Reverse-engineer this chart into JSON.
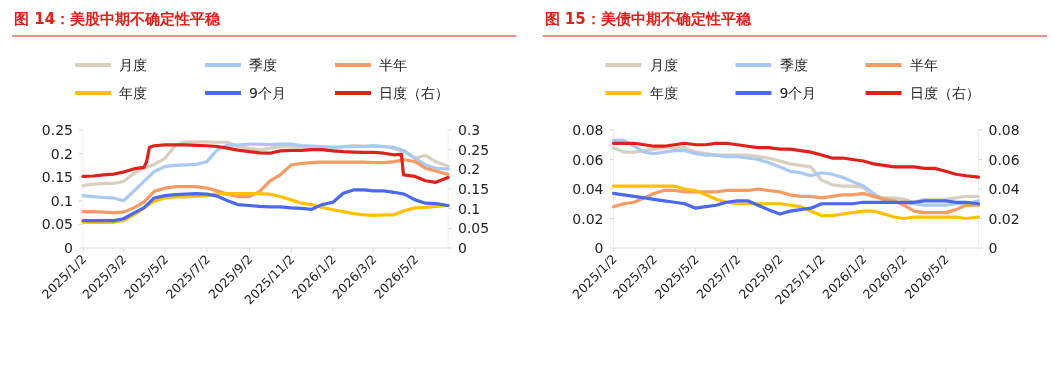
{
  "chart_data": [
    {
      "type": "line",
      "title": "图 14：美股中期不确定性平稳",
      "legend": "top",
      "x": [
        "2025-01-02",
        "2025-01-17",
        "2025-02-01",
        "2025-02-16",
        "2025-03-02",
        "2025-03-17",
        "2025-04-01",
        "2025-04-16",
        "2025-05-02",
        "2025-05-17",
        "2025-06-01",
        "2025-06-16",
        "2025-07-02",
        "2025-07-17",
        "2025-08-01",
        "2025-08-16",
        "2025-09-02",
        "2025-09-17",
        "2025-10-02",
        "2025-10-17",
        "2025-11-02",
        "2025-11-17",
        "2025-12-02",
        "2025-12-17",
        "2026-01-02",
        "2026-01-17",
        "2026-02-01",
        "2026-02-16",
        "2026-03-02",
        "2026-03-17",
        "2026-04-01",
        "2026-04-16",
        "2026-05-02",
        "2026-05-17",
        "2026-06-01",
        "2026-06-19"
      ],
      "xlim": [
        "2025-01-02",
        "2026-06-19"
      ],
      "xticks": [
        {
          "value": "2025-01-02",
          "label": "2025/1/2"
        },
        {
          "value": "2025-03-02",
          "label": "2025/3/2"
        },
        {
          "value": "2025-05-02",
          "label": "2025/5/2"
        },
        {
          "value": "2025-07-02",
          "label": "2025/7/2"
        },
        {
          "value": "2025-09-02",
          "label": "2025/9/2"
        },
        {
          "value": "2025-11-02",
          "label": "2025/11/2"
        },
        {
          "value": "2026-01-02",
          "label": "2026/1/2"
        },
        {
          "value": "2026-03-02",
          "label": "2026/3/2"
        },
        {
          "value": "2026-05-02",
          "label": "2026/5/2"
        }
      ],
      "ylim": [
        0,
        0.25
      ],
      "yticks": [
        0,
        0.05,
        0.1,
        0.15,
        0.2,
        0.25
      ],
      "y2lim": [
        0,
        0.3
      ],
      "y2ticks": [
        0,
        0.05,
        0.1,
        0.15,
        0.2,
        0.25,
        0.3
      ],
      "series": [
        {
          "name": "月度",
          "color": "#d9cfbe",
          "values": [
            0.132,
            0.135,
            0.137,
            0.137,
            0.141,
            0.158,
            0.169,
            0.177,
            0.19,
            0.218,
            0.225,
            0.225,
            0.225,
            0.224,
            0.224,
            0.215,
            0.211,
            0.208,
            0.211,
            0.215,
            0.215,
            0.215,
            0.213,
            0.211,
            0.211,
            0.215,
            0.217,
            0.216,
            0.215,
            0.215,
            0.211,
            0.204,
            0.19,
            0.196,
            0.183,
            0.173
          ]
        },
        {
          "name": "季度",
          "color": "#a9c9f3",
          "values": [
            0.111,
            0.109,
            0.107,
            0.106,
            0.1,
            0.12,
            0.141,
            0.162,
            0.173,
            0.175,
            0.176,
            0.177,
            0.183,
            0.208,
            0.218,
            0.218,
            0.22,
            0.22,
            0.219,
            0.22,
            0.22,
            0.217,
            0.216,
            0.215,
            0.214,
            0.214,
            0.215,
            0.215,
            0.217,
            0.215,
            0.213,
            0.206,
            0.19,
            0.176,
            0.169,
            0.167
          ]
        },
        {
          "name": "半年",
          "color": "#f89b63",
          "values": [
            0.077,
            0.077,
            0.076,
            0.075,
            0.076,
            0.085,
            0.097,
            0.12,
            0.127,
            0.13,
            0.13,
            0.13,
            0.127,
            0.121,
            0.114,
            0.109,
            0.109,
            0.12,
            0.142,
            0.155,
            0.176,
            0.179,
            0.181,
            0.182,
            0.182,
            0.182,
            0.182,
            0.182,
            0.181,
            0.181,
            0.183,
            0.187,
            0.183,
            0.169,
            0.163,
            0.156
          ]
        },
        {
          "name": "年度",
          "color": "#ffc000",
          "values": [
            0.055,
            0.054,
            0.054,
            0.055,
            0.058,
            0.07,
            0.085,
            0.099,
            0.106,
            0.108,
            0.108,
            0.11,
            0.111,
            0.115,
            0.115,
            0.115,
            0.115,
            0.115,
            0.114,
            0.109,
            0.102,
            0.095,
            0.092,
            0.086,
            0.081,
            0.077,
            0.073,
            0.07,
            0.069,
            0.07,
            0.07,
            0.079,
            0.085,
            0.086,
            0.088,
            0.09
          ]
        },
        {
          "name": "9个月",
          "color": "#4a68f0",
          "values": [
            0.058,
            0.058,
            0.058,
            0.058,
            0.062,
            0.074,
            0.085,
            0.106,
            0.111,
            0.113,
            0.114,
            0.115,
            0.114,
            0.11,
            0.1,
            0.092,
            0.09,
            0.088,
            0.087,
            0.087,
            0.085,
            0.084,
            0.082,
            0.092,
            0.097,
            0.116,
            0.123,
            0.123,
            0.121,
            0.121,
            0.118,
            0.114,
            0.102,
            0.095,
            0.094,
            0.09
          ]
        },
        {
          "name": "日度（右）",
          "color": "#e0201b",
          "axis": "y2",
          "x": [
            "2025-01-02",
            "2025-01-17",
            "2025-02-01",
            "2025-02-16",
            "2025-03-02",
            "2025-03-17",
            "2025-04-01",
            "2025-04-05",
            "2025-04-09",
            "2025-04-16",
            "2025-05-02",
            "2025-05-17",
            "2025-06-01",
            "2025-06-16",
            "2025-07-02",
            "2025-07-17",
            "2025-08-01",
            "2025-08-16",
            "2025-09-02",
            "2025-09-17",
            "2025-10-02",
            "2025-10-17",
            "2025-11-02",
            "2025-11-17",
            "2025-12-02",
            "2025-12-17",
            "2026-01-02",
            "2026-01-17",
            "2026-02-01",
            "2026-02-16",
            "2026-03-02",
            "2026-03-17",
            "2026-04-01",
            "2026-04-12",
            "2026-04-15",
            "2026-05-02",
            "2026-05-17",
            "2026-06-01",
            "2026-06-19"
          ],
          "values": [
            0.182,
            0.183,
            0.186,
            0.188,
            0.193,
            0.201,
            0.205,
            0.22,
            0.256,
            0.26,
            0.262,
            0.262,
            0.262,
            0.261,
            0.26,
            0.258,
            0.254,
            0.249,
            0.245,
            0.242,
            0.241,
            0.247,
            0.248,
            0.248,
            0.25,
            0.25,
            0.247,
            0.245,
            0.244,
            0.243,
            0.243,
            0.241,
            0.237,
            0.238,
            0.186,
            0.182,
            0.171,
            0.167,
            0.179
          ]
        }
      ]
    },
    {
      "type": "line",
      "title": "图 15：美债中期不确定性平稳",
      "legend": "top",
      "x": [
        "2025-01-02",
        "2025-01-17",
        "2025-02-01",
        "2025-02-16",
        "2025-03-02",
        "2025-03-17",
        "2025-04-01",
        "2025-04-16",
        "2025-05-02",
        "2025-05-17",
        "2025-06-01",
        "2025-06-16",
        "2025-07-02",
        "2025-07-17",
        "2025-08-01",
        "2025-08-16",
        "2025-09-02",
        "2025-09-17",
        "2025-10-02",
        "2025-10-17",
        "2025-11-02",
        "2025-11-17",
        "2025-12-02",
        "2025-12-17",
        "2026-01-02",
        "2026-01-17",
        "2026-02-01",
        "2026-02-16",
        "2026-03-02",
        "2026-03-17",
        "2026-04-01",
        "2026-04-16",
        "2026-05-02",
        "2026-05-17",
        "2026-06-01",
        "2026-06-19"
      ],
      "xlim": [
        "2025-01-02",
        "2026-06-19"
      ],
      "xticks": [
        {
          "value": "2025-01-02",
          "label": "2025/1/2"
        },
        {
          "value": "2025-03-02",
          "label": "2025/3/2"
        },
        {
          "value": "2025-05-02",
          "label": "2025/5/2"
        },
        {
          "value": "2025-07-02",
          "label": "2025/7/2"
        },
        {
          "value": "2025-09-02",
          "label": "2025/9/2"
        },
        {
          "value": "2025-11-02",
          "label": "2025/11/2"
        },
        {
          "value": "2026-01-02",
          "label": "2026/1/2"
        },
        {
          "value": "2026-03-02",
          "label": "2026/3/2"
        },
        {
          "value": "2026-05-02",
          "label": "2026/5/2"
        }
      ],
      "ylim": [
        0,
        0.08
      ],
      "yticks": [
        0,
        0.02,
        0.04,
        0.06,
        0.08
      ],
      "y2lim": [
        0,
        0.08
      ],
      "y2ticks": [
        0,
        0.02,
        0.04,
        0.06,
        0.08
      ],
      "series": [
        {
          "name": "月度",
          "color": "#d9cfbe",
          "values": [
            0.068,
            0.065,
            0.065,
            0.066,
            0.067,
            0.068,
            0.068,
            0.068,
            0.065,
            0.064,
            0.063,
            0.063,
            0.063,
            0.063,
            0.062,
            0.061,
            0.059,
            0.057,
            0.056,
            0.055,
            0.046,
            0.043,
            0.042,
            0.042,
            0.041,
            0.035,
            0.034,
            0.034,
            0.033,
            0.031,
            0.033,
            0.033,
            0.033,
            0.034,
            0.035,
            0.035
          ]
        },
        {
          "name": "季度",
          "color": "#a9c9f3",
          "values": [
            0.073,
            0.073,
            0.069,
            0.065,
            0.064,
            0.065,
            0.066,
            0.066,
            0.064,
            0.063,
            0.063,
            0.062,
            0.062,
            0.061,
            0.06,
            0.058,
            0.055,
            0.052,
            0.051,
            0.049,
            0.051,
            0.05,
            0.048,
            0.045,
            0.042,
            0.037,
            0.032,
            0.031,
            0.03,
            0.03,
            0.029,
            0.029,
            0.029,
            0.03,
            0.03,
            0.032
          ]
        },
        {
          "name": "半年",
          "color": "#f89b63",
          "values": [
            0.028,
            0.03,
            0.031,
            0.034,
            0.037,
            0.039,
            0.039,
            0.038,
            0.038,
            0.038,
            0.038,
            0.039,
            0.039,
            0.039,
            0.04,
            0.039,
            0.038,
            0.036,
            0.035,
            0.035,
            0.034,
            0.035,
            0.036,
            0.036,
            0.037,
            0.035,
            0.033,
            0.032,
            0.029,
            0.025,
            0.024,
            0.024,
            0.024,
            0.026,
            0.029,
            0.029
          ]
        },
        {
          "name": "年度",
          "color": "#ffc000",
          "values": [
            0.042,
            0.042,
            0.042,
            0.042,
            0.042,
            0.042,
            0.042,
            0.04,
            0.039,
            0.036,
            0.033,
            0.031,
            0.03,
            0.03,
            0.03,
            0.03,
            0.03,
            0.029,
            0.028,
            0.025,
            0.022,
            0.022,
            0.023,
            0.024,
            0.025,
            0.025,
            0.023,
            0.021,
            0.02,
            0.021,
            0.021,
            0.021,
            0.021,
            0.021,
            0.02,
            0.021
          ]
        },
        {
          "name": "9个月",
          "color": "#4a68f0",
          "values": [
            0.037,
            0.036,
            0.035,
            0.034,
            0.033,
            0.032,
            0.031,
            0.03,
            0.027,
            0.028,
            0.029,
            0.031,
            0.032,
            0.032,
            0.029,
            0.026,
            0.023,
            0.025,
            0.026,
            0.027,
            0.03,
            0.03,
            0.03,
            0.03,
            0.031,
            0.031,
            0.031,
            0.031,
            0.031,
            0.031,
            0.032,
            0.032,
            0.032,
            0.031,
            0.031,
            0.03
          ]
        },
        {
          "name": "日度（右）",
          "color": "#e0201b",
          "axis": "y2",
          "values": [
            0.071,
            0.071,
            0.071,
            0.07,
            0.069,
            0.069,
            0.07,
            0.071,
            0.07,
            0.07,
            0.071,
            0.071,
            0.07,
            0.069,
            0.068,
            0.068,
            0.067,
            0.067,
            0.066,
            0.065,
            0.063,
            0.061,
            0.061,
            0.06,
            0.059,
            0.057,
            0.056,
            0.055,
            0.055,
            0.055,
            0.054,
            0.054,
            0.052,
            0.05,
            0.049,
            0.048
          ]
        }
      ]
    }
  ]
}
